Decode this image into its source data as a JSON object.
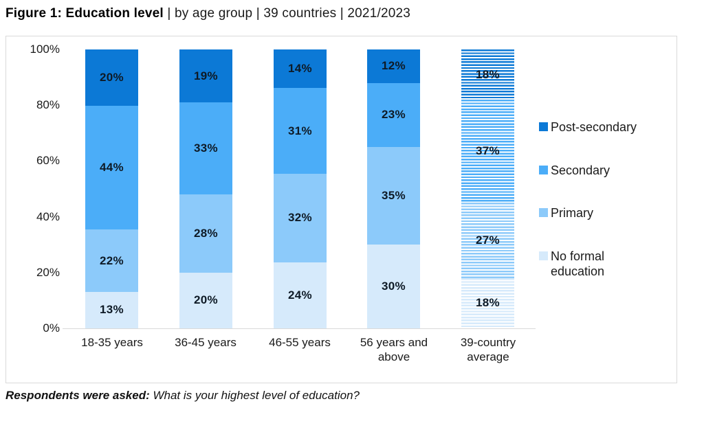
{
  "title": {
    "bold": "Figure 1: Education level",
    "rest": " | by age group | 39 countries | 2021/2023"
  },
  "footer": {
    "bold": "Respondents were asked:",
    "question": " What is your highest level of education?"
  },
  "chart_data": {
    "type": "bar",
    "stacked": true,
    "percent_stacked": true,
    "title": "Figure 1: Education level | by age group | 39 countries | 2021/2023",
    "categories": [
      "18-35 years",
      "36-45 years",
      "46-55 years",
      "56 years and above",
      "39-country average"
    ],
    "series": [
      {
        "name": "No formal education",
        "color": "#d6eafb",
        "values": [
          13,
          20,
          24,
          30,
          18
        ]
      },
      {
        "name": "Primary",
        "color": "#8ccafa",
        "values": [
          22,
          28,
          32,
          35,
          27
        ]
      },
      {
        "name": "Secondary",
        "color": "#4badf8",
        "values": [
          44,
          33,
          31,
          23,
          37
        ]
      },
      {
        "name": "Post-secondary",
        "color": "#0c79d6",
        "values": [
          20,
          19,
          14,
          12,
          18
        ]
      }
    ],
    "data_label_suffix": "%",
    "striped_category_index": 4,
    "legend_order": [
      "Post-secondary",
      "Secondary",
      "Primary",
      "No formal education"
    ],
    "legend_position": "right",
    "yticks": [
      {
        "label": "100%",
        "value": 100
      },
      {
        "label": "80%",
        "value": 80
      },
      {
        "label": "60%",
        "value": 60
      },
      {
        "label": "40%",
        "value": 40
      },
      {
        "label": "20%",
        "value": 20
      },
      {
        "label": "0%",
        "value": 0
      }
    ],
    "ylim": [
      0,
      100
    ],
    "grid": false,
    "label_color": "#0e1a26",
    "axis_color": "#d9d9d9"
  }
}
